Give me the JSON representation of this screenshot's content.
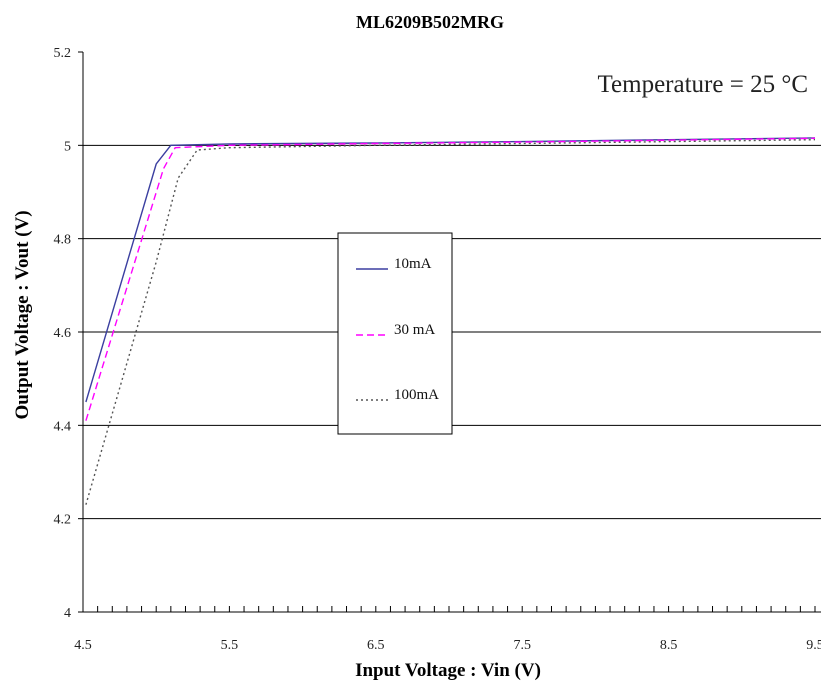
{
  "chart_data": {
    "type": "line",
    "title": "ML6209B502MRG",
    "xlabel": "Input Voltage : Vin (V)",
    "ylabel": "Output Voltage : Vout (V)",
    "annotation": "Temperature = 25 °C",
    "xlim": [
      4.5,
      9.5
    ],
    "ylim": [
      4.0,
      5.2
    ],
    "xticks": [
      "4.5",
      "5.5",
      "6.5",
      "7.5",
      "8.5",
      "9.5"
    ],
    "yticks": [
      "4",
      "4.2",
      "4.4",
      "4.6",
      "4.8",
      "5",
      "5.2"
    ],
    "grid": "horizontal",
    "legend_position": "center",
    "series": [
      {
        "name": "10mA",
        "color": "#3b3fa0",
        "style": "solid",
        "x": [
          4.52,
          5.0,
          5.1,
          5.5,
          6.5,
          7.5,
          8.5,
          9.5
        ],
        "y": [
          4.45,
          4.96,
          5.0,
          5.003,
          5.005,
          5.008,
          5.012,
          5.016
        ]
      },
      {
        "name": "30 mA",
        "color": "#ff00ff",
        "style": "dashed",
        "x": [
          4.52,
          5.05,
          5.13,
          5.5,
          6.5,
          7.5,
          8.5,
          9.5
        ],
        "y": [
          4.41,
          4.95,
          4.995,
          5.0,
          5.004,
          5.007,
          5.011,
          5.015
        ]
      },
      {
        "name": "100mA",
        "color": "#555555",
        "style": "dotted",
        "x": [
          4.52,
          5.0,
          5.15,
          5.28,
          5.5,
          6.5,
          7.5,
          8.5,
          9.5
        ],
        "y": [
          4.23,
          4.75,
          4.93,
          4.99,
          4.995,
          5.0,
          5.004,
          5.008,
          5.012
        ]
      }
    ]
  }
}
